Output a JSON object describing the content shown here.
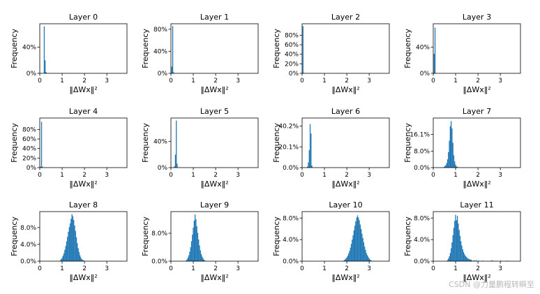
{
  "colors": {
    "bar": "#1f77b4",
    "axis": "#000000",
    "background": "#ffffff"
  },
  "watermark": "CSDN @力量鹏程转瞬至",
  "chart_data": [
    {
      "type": "bar",
      "title": "Layer 0",
      "xlabel": "‖ΔWx‖²",
      "ylabel": "Frequency",
      "xlim": [
        0,
        3.9
      ],
      "xticks": [
        0,
        1,
        2,
        3
      ],
      "yticks": [
        0,
        0.4
      ],
      "ytick_labels": [
        "0%",
        "40%"
      ],
      "ylim": [
        0,
        0.76
      ],
      "bin_width": 0.04,
      "bins": [
        [
          0.18,
          0.72
        ],
        [
          0.22,
          0.2
        ],
        [
          0.26,
          0.02
        ]
      ]
    },
    {
      "type": "bar",
      "title": "Layer 1",
      "xlabel": "‖ΔWx‖²",
      "ylabel": "Frequency",
      "xlim": [
        0,
        3.9
      ],
      "xticks": [
        0,
        1,
        2,
        3
      ],
      "yticks": [
        0,
        0.4,
        0.8
      ],
      "ytick_labels": [
        "0%",
        "40%",
        "80%"
      ],
      "ylim": [
        0,
        0.9
      ],
      "bin_width": 0.04,
      "bins": [
        [
          0.02,
          0.12
        ],
        [
          0.06,
          0.86
        ],
        [
          0.1,
          0.02
        ]
      ]
    },
    {
      "type": "bar",
      "title": "Layer 2",
      "xlabel": "‖ΔWx‖²",
      "ylabel": "Frequency",
      "xlim": [
        0,
        3.9
      ],
      "xticks": [
        0,
        1,
        2,
        3
      ],
      "yticks": [
        0,
        0.2,
        0.4,
        0.6,
        0.8
      ],
      "ytick_labels": [
        "0%",
        "20%",
        "40%",
        "60%",
        "80%"
      ],
      "ylim": [
        0,
        1.04
      ],
      "bin_width": 0.04,
      "bins": [
        [
          0.02,
          0.99
        ],
        [
          0.06,
          0.01
        ]
      ]
    },
    {
      "type": "bar",
      "title": "Layer 3",
      "xlabel": "‖ΔWx‖²",
      "ylabel": "Frequency",
      "xlim": [
        0,
        3.9
      ],
      "xticks": [
        0,
        1,
        2,
        3
      ],
      "yticks": [
        0,
        0.4
      ],
      "ytick_labels": [
        "0%",
        "40%"
      ],
      "ylim": [
        0,
        0.76
      ],
      "bin_width": 0.04,
      "bins": [
        [
          0.02,
          0.3
        ],
        [
          0.06,
          0.7
        ]
      ]
    },
    {
      "type": "bar",
      "title": "Layer 4",
      "xlabel": "‖ΔWx‖²",
      "ylabel": "Frequency",
      "xlim": [
        0,
        3.9
      ],
      "xticks": [
        0,
        1,
        2,
        3
      ],
      "yticks": [
        0,
        0.2,
        0.4,
        0.6,
        0.8
      ],
      "ytick_labels": [
        "0%",
        "20%",
        "40%",
        "60%",
        "80%"
      ],
      "ylim": [
        0,
        1.04
      ],
      "bin_width": 0.04,
      "bins": [
        [
          0.02,
          0.02
        ],
        [
          0.06,
          0.96
        ],
        [
          0.1,
          0.02
        ]
      ]
    },
    {
      "type": "bar",
      "title": "Layer 5",
      "xlabel": "‖ΔWx‖²",
      "ylabel": "Frequency",
      "xlim": [
        0,
        3.9
      ],
      "xticks": [
        0,
        1,
        2,
        3
      ],
      "yticks": [
        0,
        0.4
      ],
      "ytick_labels": [
        "0%",
        "40%"
      ],
      "ylim": [
        0,
        0.76
      ],
      "bin_width": 0.04,
      "bins": [
        [
          0.14,
          0.02
        ],
        [
          0.18,
          0.2
        ],
        [
          0.22,
          0.72
        ],
        [
          0.26,
          0.06
        ]
      ]
    },
    {
      "type": "bar",
      "title": "Layer 6",
      "xlabel": "‖ΔWx‖²",
      "ylabel": "Frequency",
      "xlim": [
        0,
        3.9
      ],
      "xticks": [
        0,
        1,
        2,
        3
      ],
      "yticks": [
        0,
        0.201,
        0.402
      ],
      "ytick_labels": [
        "0.0%",
        "20.1%",
        "40.2%"
      ],
      "ylim": [
        0,
        0.48
      ],
      "bin_width": 0.04,
      "bins": [
        [
          0.22,
          0.01
        ],
        [
          0.26,
          0.05
        ],
        [
          0.3,
          0.17
        ],
        [
          0.34,
          0.42
        ],
        [
          0.38,
          0.33
        ],
        [
          0.42,
          0.02
        ]
      ]
    },
    {
      "type": "bar",
      "title": "Layer 7",
      "xlabel": "‖ΔWx‖²",
      "ylabel": "Frequency",
      "xlim": [
        0,
        3.9
      ],
      "xticks": [
        0,
        1,
        2,
        3
      ],
      "yticks": [
        0,
        0.08,
        0.161
      ],
      "ytick_labels": [
        "0.0%",
        "8.0%",
        "16.1%"
      ],
      "ylim": [
        0,
        0.24
      ],
      "bin_width": 0.04,
      "bins": [
        [
          0.46,
          0.003
        ],
        [
          0.5,
          0.007
        ],
        [
          0.54,
          0.012
        ],
        [
          0.58,
          0.022
        ],
        [
          0.62,
          0.04
        ],
        [
          0.66,
          0.075
        ],
        [
          0.7,
          0.13
        ],
        [
          0.74,
          0.2
        ],
        [
          0.78,
          0.225
        ],
        [
          0.82,
          0.19
        ],
        [
          0.86,
          0.12
        ],
        [
          0.9,
          0.06
        ],
        [
          0.94,
          0.03
        ],
        [
          0.98,
          0.014
        ],
        [
          1.02,
          0.006
        ],
        [
          1.06,
          0.003
        ],
        [
          1.1,
          0.002
        ]
      ]
    },
    {
      "type": "bar",
      "title": "Layer 8",
      "xlabel": "‖ΔWx‖²",
      "ylabel": "Frequency",
      "xlim": [
        0,
        3.9
      ],
      "xticks": [
        0,
        1,
        2,
        3
      ],
      "yticks": [
        0,
        0.04,
        0.08
      ],
      "ytick_labels": [
        "0.0%",
        "4.0%",
        "8.0%"
      ],
      "ylim": [
        0,
        0.118
      ],
      "bin_width": 0.04,
      "bins": [
        [
          0.9,
          0.002
        ],
        [
          0.94,
          0.005
        ],
        [
          0.98,
          0.008
        ],
        [
          1.02,
          0.013
        ],
        [
          1.06,
          0.019
        ],
        [
          1.1,
          0.027
        ],
        [
          1.14,
          0.036
        ],
        [
          1.18,
          0.047
        ],
        [
          1.22,
          0.058
        ],
        [
          1.26,
          0.07
        ],
        [
          1.3,
          0.081
        ],
        [
          1.34,
          0.09
        ],
        [
          1.38,
          0.101
        ],
        [
          1.42,
          0.112
        ],
        [
          1.46,
          0.107
        ],
        [
          1.5,
          0.098
        ],
        [
          1.54,
          0.085
        ],
        [
          1.58,
          0.072
        ],
        [
          1.62,
          0.057
        ],
        [
          1.66,
          0.043
        ],
        [
          1.7,
          0.031
        ],
        [
          1.74,
          0.022
        ],
        [
          1.78,
          0.014
        ],
        [
          1.82,
          0.009
        ],
        [
          1.86,
          0.005
        ],
        [
          1.9,
          0.003
        ],
        [
          1.94,
          0.002
        ]
      ]
    },
    {
      "type": "bar",
      "title": "Layer 9",
      "xlabel": "‖ΔWx‖²",
      "ylabel": "Frequency",
      "xlim": [
        0,
        3.9
      ],
      "xticks": [
        0,
        1,
        2,
        3
      ],
      "yticks": [
        0,
        0.08
      ],
      "ytick_labels": [
        "0.0%",
        "8.0%"
      ],
      "ylim": [
        0,
        0.142
      ],
      "bin_width": 0.04,
      "bins": [
        [
          0.66,
          0.002
        ],
        [
          0.7,
          0.005
        ],
        [
          0.74,
          0.01
        ],
        [
          0.78,
          0.017
        ],
        [
          0.82,
          0.027
        ],
        [
          0.86,
          0.04
        ],
        [
          0.9,
          0.057
        ],
        [
          0.94,
          0.076
        ],
        [
          0.98,
          0.096
        ],
        [
          1.02,
          0.116
        ],
        [
          1.06,
          0.134
        ],
        [
          1.1,
          0.12
        ],
        [
          1.14,
          0.1
        ],
        [
          1.18,
          0.081
        ],
        [
          1.22,
          0.062
        ],
        [
          1.26,
          0.045
        ],
        [
          1.3,
          0.031
        ],
        [
          1.34,
          0.02
        ],
        [
          1.38,
          0.013
        ],
        [
          1.42,
          0.008
        ],
        [
          1.46,
          0.004
        ],
        [
          1.5,
          0.002
        ]
      ]
    },
    {
      "type": "bar",
      "title": "Layer 10",
      "xlabel": "‖ΔWx‖²",
      "ylabel": "Frequency",
      "xlim": [
        0,
        3.9
      ],
      "xticks": [
        0,
        1,
        2,
        3
      ],
      "yticks": [
        0,
        0.04,
        0.08
      ],
      "ytick_labels": [
        "0.0%",
        "4.0%",
        "8.0%"
      ],
      "ylim": [
        0,
        0.092
      ],
      "bin_width": 0.04,
      "bins": [
        [
          1.86,
          0.002
        ],
        [
          1.9,
          0.003
        ],
        [
          1.94,
          0.005
        ],
        [
          1.98,
          0.007
        ],
        [
          2.02,
          0.01
        ],
        [
          2.06,
          0.014
        ],
        [
          2.1,
          0.019
        ],
        [
          2.14,
          0.025
        ],
        [
          2.18,
          0.032
        ],
        [
          2.22,
          0.04
        ],
        [
          2.26,
          0.048
        ],
        [
          2.3,
          0.057
        ],
        [
          2.34,
          0.066
        ],
        [
          2.38,
          0.074
        ],
        [
          2.42,
          0.081
        ],
        [
          2.46,
          0.085
        ],
        [
          2.5,
          0.081
        ],
        [
          2.54,
          0.076
        ],
        [
          2.58,
          0.068
        ],
        [
          2.62,
          0.06
        ],
        [
          2.66,
          0.051
        ],
        [
          2.7,
          0.043
        ],
        [
          2.74,
          0.035
        ],
        [
          2.78,
          0.027
        ],
        [
          2.82,
          0.021
        ],
        [
          2.86,
          0.015
        ],
        [
          2.9,
          0.011
        ],
        [
          2.94,
          0.008
        ],
        [
          2.98,
          0.005
        ],
        [
          3.02,
          0.003
        ],
        [
          3.06,
          0.002
        ]
      ]
    },
    {
      "type": "bar",
      "title": "Layer 11",
      "xlabel": "‖ΔWx‖²",
      "ylabel": "Frequency",
      "xlim": [
        0,
        3.9
      ],
      "xticks": [
        0,
        1,
        2,
        3
      ],
      "yticks": [
        0,
        0.04,
        0.08
      ],
      "ytick_labels": [
        "0.0%",
        "4.0%",
        "8.0%"
      ],
      "ylim": [
        0,
        0.092
      ],
      "bin_width": 0.04,
      "bins": [
        [
          0.62,
          0.002
        ],
        [
          0.66,
          0.005
        ],
        [
          0.7,
          0.009
        ],
        [
          0.74,
          0.015
        ],
        [
          0.78,
          0.024
        ],
        [
          0.82,
          0.035
        ],
        [
          0.86,
          0.048
        ],
        [
          0.9,
          0.062
        ],
        [
          0.94,
          0.075
        ],
        [
          0.98,
          0.086
        ],
        [
          1.02,
          0.076
        ],
        [
          1.06,
          0.084
        ],
        [
          1.1,
          0.07
        ],
        [
          1.14,
          0.058
        ],
        [
          1.18,
          0.047
        ],
        [
          1.22,
          0.037
        ],
        [
          1.26,
          0.029
        ],
        [
          1.3,
          0.022
        ],
        [
          1.34,
          0.017
        ],
        [
          1.38,
          0.013
        ],
        [
          1.42,
          0.01
        ],
        [
          1.46,
          0.008
        ],
        [
          1.5,
          0.006
        ],
        [
          1.54,
          0.005
        ],
        [
          1.58,
          0.004
        ],
        [
          1.62,
          0.003
        ],
        [
          1.66,
          0.003
        ],
        [
          1.7,
          0.002
        ],
        [
          1.8,
          0.002
        ],
        [
          1.9,
          0.002
        ],
        [
          2.0,
          0.001
        ],
        [
          2.2,
          0.001
        ],
        [
          2.6,
          0.002
        ],
        [
          2.7,
          0.001
        ],
        [
          3.0,
          0.001
        ],
        [
          3.3,
          0.001
        ]
      ]
    }
  ]
}
